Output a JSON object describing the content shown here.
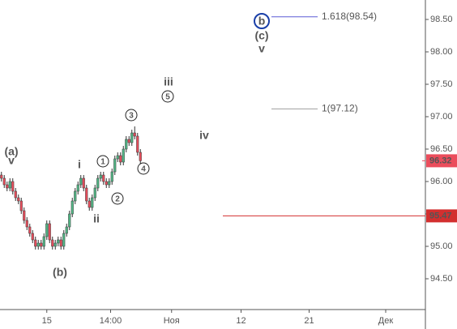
{
  "chart_data": {
    "type": "candlestick",
    "open": [
      96.1,
      96.05,
      95.95,
      95.9,
      96.0,
      95.85,
      95.75,
      95.7,
      95.55,
      95.4,
      95.3,
      95.2,
      95.1,
      95.0,
      95.05,
      95.0,
      95.15,
      95.35,
      95.1,
      95.0,
      95.05,
      95.1,
      95.0,
      95.2,
      95.3,
      95.5,
      95.7,
      95.85,
      95.95,
      96.05,
      95.9,
      95.7,
      95.6,
      95.75,
      95.9,
      96.05,
      96.1,
      96.0,
      95.95,
      96.0,
      96.15,
      96.35,
      96.4,
      96.3,
      96.5,
      96.65,
      96.6,
      96.75,
      96.7,
      96.45
    ],
    "high": [
      96.15,
      96.1,
      96.0,
      96.05,
      96.05,
      95.9,
      95.8,
      95.75,
      95.6,
      95.45,
      95.35,
      95.25,
      95.15,
      95.1,
      95.1,
      95.2,
      95.4,
      95.4,
      95.15,
      95.1,
      95.15,
      95.15,
      95.25,
      95.35,
      95.55,
      95.75,
      95.9,
      96.0,
      96.1,
      96.1,
      95.95,
      95.75,
      95.8,
      95.95,
      96.1,
      96.15,
      96.15,
      96.05,
      96.05,
      96.2,
      96.4,
      96.45,
      96.45,
      96.55,
      96.7,
      96.7,
      96.8,
      96.85,
      96.75,
      96.5
    ],
    "low": [
      96.0,
      95.9,
      95.85,
      95.85,
      95.8,
      95.7,
      95.65,
      95.5,
      95.35,
      95.25,
      95.15,
      95.05,
      94.95,
      94.95,
      94.95,
      94.95,
      95.1,
      95.05,
      94.95,
      94.95,
      95.0,
      94.95,
      94.95,
      95.15,
      95.25,
      95.45,
      95.65,
      95.8,
      95.9,
      95.85,
      95.65,
      95.55,
      95.55,
      95.7,
      95.85,
      96.0,
      95.95,
      95.9,
      95.9,
      95.95,
      96.1,
      96.3,
      96.25,
      96.25,
      96.45,
      96.55,
      96.55,
      96.65,
      96.4,
      96.27
    ],
    "close": [
      96.05,
      95.95,
      95.9,
      96.0,
      95.85,
      95.75,
      95.7,
      95.55,
      95.4,
      95.3,
      95.2,
      95.1,
      95.0,
      95.05,
      95.0,
      95.15,
      95.35,
      95.1,
      95.0,
      95.05,
      95.1,
      95.0,
      95.2,
      95.3,
      95.5,
      95.7,
      95.85,
      95.95,
      96.05,
      95.9,
      95.7,
      95.6,
      95.75,
      95.9,
      96.05,
      96.1,
      96.0,
      95.95,
      96.0,
      96.15,
      96.35,
      96.4,
      96.3,
      96.5,
      96.65,
      96.6,
      96.75,
      96.7,
      96.45,
      96.32
    ],
    "up_color": "#53b987",
    "down_color": "#eb4d5c",
    "xlim": [
      0,
      150
    ],
    "xticks": [
      {
        "value": 16.5,
        "label": "15"
      },
      {
        "value": 39,
        "label": "14:00"
      },
      {
        "value": 60.5,
        "label": "Ноя"
      },
      {
        "value": 85,
        "label": "12"
      },
      {
        "value": 109,
        "label": "21"
      },
      {
        "value": 136,
        "label": "Дек"
      }
    ],
    "ylim": [
      94.025,
      98.8
    ],
    "yticks": [
      {
        "value": 94.5,
        "label": "94.50"
      },
      {
        "value": 95,
        "label": "95.00"
      },
      {
        "value": 95.5,
        "label": "95.50"
      },
      {
        "value": 96,
        "label": "96.00"
      },
      {
        "value": 96.5,
        "label": "96.50"
      },
      {
        "value": 97,
        "label": "97.00"
      },
      {
        "value": 97.5,
        "label": "97.50"
      },
      {
        "value": 98,
        "label": "98.00"
      },
      {
        "value": 98.5,
        "label": "98.50"
      }
    ],
    "levels": [
      {
        "value": 98.54,
        "label": "1.618(98.54)",
        "color": "#5b5bd6"
      },
      {
        "value": 97.12,
        "label": "1(97.12)",
        "color": "#9e9e9e"
      }
    ],
    "last_price": 96.32,
    "alert_line": 95.47,
    "alert_color": "#d32f2f",
    "annotations": [
      {
        "text": "(a)",
        "color": "#b71c1c"
      },
      {
        "text": "v",
        "color": "#1a3fa8"
      },
      {
        "text": "(b)",
        "color": "#b71c1c"
      },
      {
        "text": "i",
        "color": "#222"
      },
      {
        "text": "ii",
        "color": "#222"
      },
      {
        "text": "iii",
        "color": "#222"
      },
      {
        "text": "iv",
        "color": "#222"
      },
      {
        "text": "b",
        "color": "#1a3fa8",
        "circled": true
      },
      {
        "text": "(c)",
        "color": "#b71c1c"
      },
      {
        "text": "v",
        "color": "#222"
      },
      {
        "text": "1",
        "color": "#222",
        "circled": true
      },
      {
        "text": "2",
        "color": "#222",
        "circled": true
      },
      {
        "text": "3",
        "color": "#222",
        "circled": true
      },
      {
        "text": "4",
        "color": "#222",
        "circled": true
      },
      {
        "text": "5",
        "color": "#222",
        "circled": true
      }
    ]
  }
}
